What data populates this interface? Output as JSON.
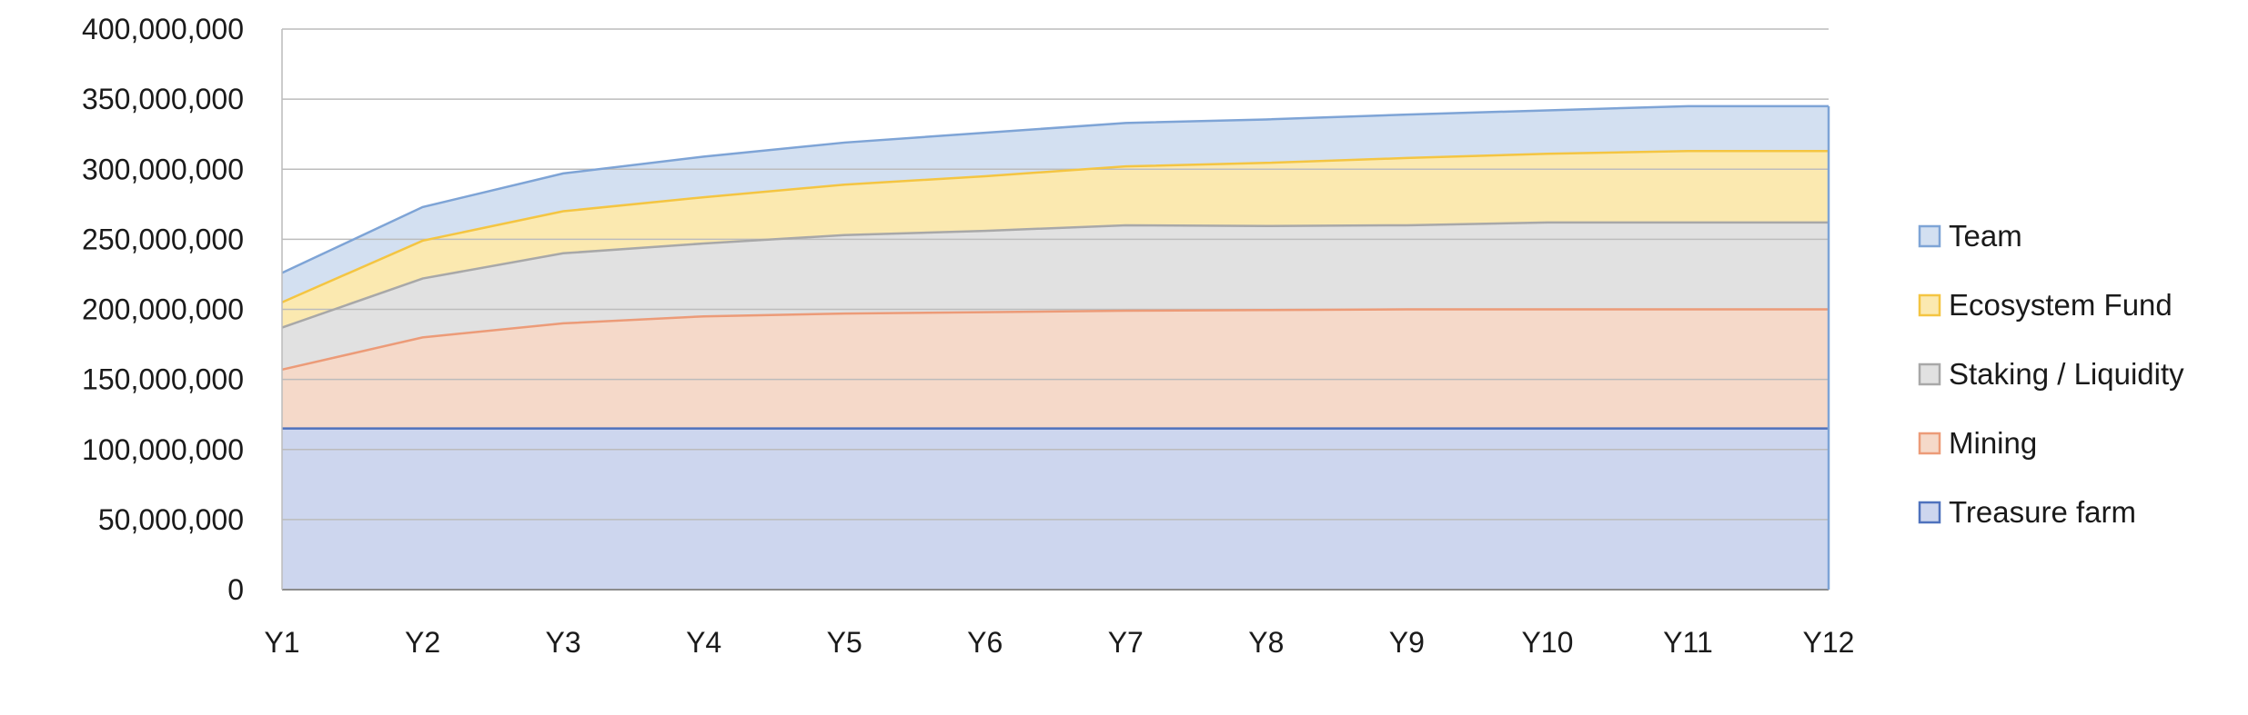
{
  "chart_data": {
    "type": "area",
    "stacked": true,
    "categories": [
      "Y1",
      "Y2",
      "Y3",
      "Y4",
      "Y5",
      "Y6",
      "Y7",
      "Y8",
      "Y9",
      "Y10",
      "Y11",
      "Y12"
    ],
    "series": [
      {
        "name": "Treasure farm",
        "fill": "#cdd6ee",
        "stroke": "#4f72bd",
        "values": [
          115000000,
          115000000,
          115000000,
          115000000,
          115000000,
          115000000,
          115000000,
          115000000,
          115000000,
          115000000,
          115000000,
          115000000
        ]
      },
      {
        "name": "Mining",
        "fill": "#f5d9c9",
        "stroke": "#ec9b78",
        "values": [
          42000000,
          65000000,
          75000000,
          80000000,
          82000000,
          83000000,
          84000000,
          84500000,
          85000000,
          85000000,
          85000000,
          85000000
        ]
      },
      {
        "name": "Staking / Liquidity",
        "fill": "#e1e1e1",
        "stroke": "#a8a8a8",
        "values": [
          30000000,
          42000000,
          50000000,
          52000000,
          56000000,
          58000000,
          61000000,
          60000000,
          60000000,
          62000000,
          62000000,
          62000000
        ]
      },
      {
        "name": "Ecosystem Fund",
        "fill": "#fbe9b0",
        "stroke": "#f4c542",
        "values": [
          18000000,
          27000000,
          30000000,
          33000000,
          36000000,
          39000000,
          42000000,
          45000000,
          48000000,
          49000000,
          51000000,
          51000000
        ]
      },
      {
        "name": "Team",
        "fill": "#d3e0f1",
        "stroke": "#7ea4d6",
        "values": [
          21000000,
          24000000,
          27000000,
          29000000,
          30000000,
          31000000,
          31000000,
          31000000,
          31000000,
          31000000,
          32000000,
          32000000
        ]
      }
    ],
    "y_ticks": [
      "0",
      "50,000,000",
      "100,000,000",
      "150,000,000",
      "200,000,000",
      "250,000,000",
      "300,000,000",
      "350,000,000",
      "400,000,000"
    ],
    "ylim": [
      0,
      400000000
    ],
    "grid": true,
    "legend": {
      "placement": "right",
      "order": [
        "Team",
        "Ecosystem Fund",
        "Staking / Liquidity",
        "Mining",
        "Treasure farm"
      ]
    }
  }
}
